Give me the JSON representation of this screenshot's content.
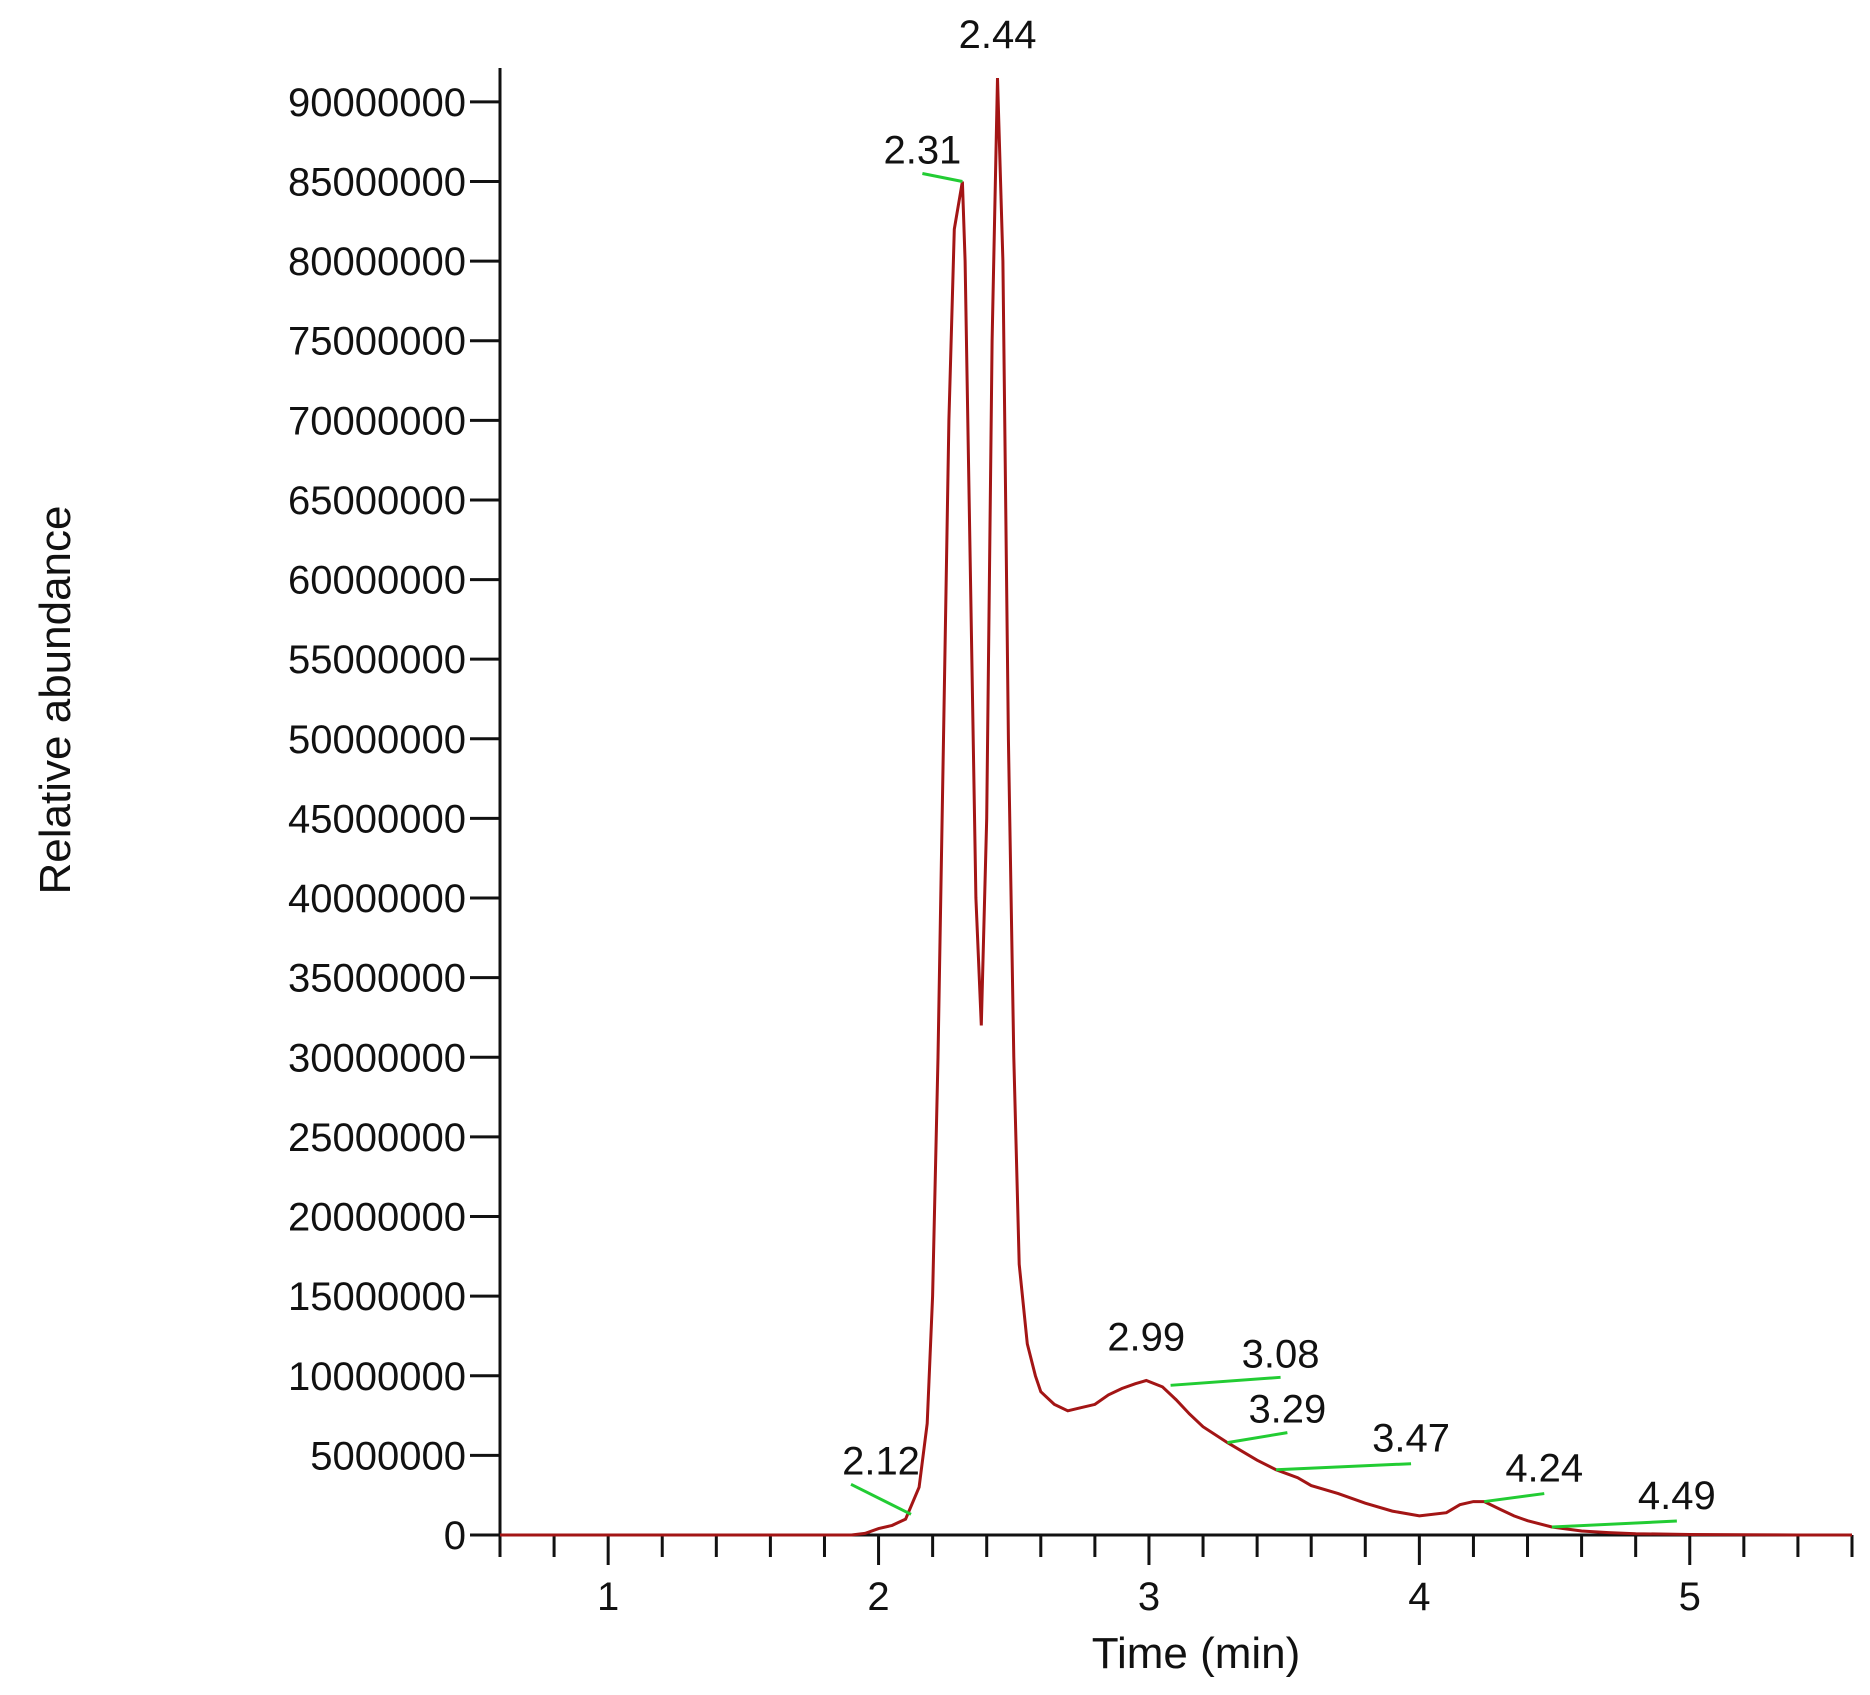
{
  "chart_data": {
    "type": "line",
    "xlabel": "Time (min)",
    "ylabel": "Relative abundance",
    "xlim": [
      0.6,
      5.6
    ],
    "ylim": [
      0,
      92000000
    ],
    "x_ticks": [
      1,
      2,
      3,
      4,
      5
    ],
    "y_ticks": [
      0,
      5000000,
      10000000,
      15000000,
      20000000,
      25000000,
      30000000,
      35000000,
      40000000,
      45000000,
      50000000,
      55000000,
      60000000,
      65000000,
      70000000,
      75000000,
      80000000,
      85000000,
      90000000
    ],
    "grid": false,
    "legend": "none",
    "line_color": "#a31515",
    "marker_color": "#22cc33",
    "series": [
      {
        "x": [
          0.6,
          1.0,
          1.5,
          1.9,
          1.95,
          2.0,
          2.05,
          2.1,
          2.15,
          2.18,
          2.2,
          2.22,
          2.24,
          2.26,
          2.28,
          2.3,
          2.31,
          2.32,
          2.34,
          2.36,
          2.38,
          2.4,
          2.42,
          2.44,
          2.46,
          2.48,
          2.5,
          2.52,
          2.55,
          2.58,
          2.6,
          2.65,
          2.7,
          2.75,
          2.8,
          2.85,
          2.9,
          2.95,
          2.99,
          3.05,
          3.1,
          3.15,
          3.2,
          3.29,
          3.35,
          3.4,
          3.47,
          3.55,
          3.6,
          3.7,
          3.8,
          3.9,
          4.0,
          4.1,
          4.15,
          4.2,
          4.24,
          4.3,
          4.35,
          4.4,
          4.49,
          4.6,
          4.7,
          4.8,
          5.0,
          5.2,
          5.4,
          5.6
        ],
        "y": [
          0,
          0,
          0,
          0,
          100000,
          400000,
          600000,
          1000000,
          3000000,
          7000000,
          15000000,
          30000000,
          50000000,
          70000000,
          82000000,
          84000000,
          85000000,
          80000000,
          60000000,
          40000000,
          32000000,
          45000000,
          75000000,
          91500000,
          80000000,
          50000000,
          30000000,
          17000000,
          12000000,
          10000000,
          9000000,
          8200000,
          7800000,
          8000000,
          8200000,
          8800000,
          9200000,
          9500000,
          9700000,
          9300000,
          8500000,
          7600000,
          6800000,
          5800000,
          5200000,
          4700000,
          4100000,
          3600000,
          3100000,
          2600000,
          2000000,
          1500000,
          1200000,
          1400000,
          1900000,
          2100000,
          2100000,
          1600000,
          1200000,
          900000,
          500000,
          250000,
          150000,
          80000,
          30000,
          10000,
          0,
          0
        ]
      }
    ],
    "peaks": [
      {
        "label": "2.12",
        "x": 2.12,
        "y": 1300000
      },
      {
        "label": "2.31",
        "x": 2.31,
        "y": 85000000
      },
      {
        "label": "2.44",
        "x": 2.44,
        "y": 91500000
      },
      {
        "label": "2.99",
        "x": 2.99,
        "y": 9700000
      },
      {
        "label": "3.08",
        "x": 3.08,
        "y": 9400000
      },
      {
        "label": "3.29",
        "x": 3.29,
        "y": 5800000
      },
      {
        "label": "3.47",
        "x": 3.47,
        "y": 4100000
      },
      {
        "label": "4.24",
        "x": 4.24,
        "y": 2100000
      },
      {
        "label": "4.49",
        "x": 4.49,
        "y": 500000
      }
    ]
  }
}
